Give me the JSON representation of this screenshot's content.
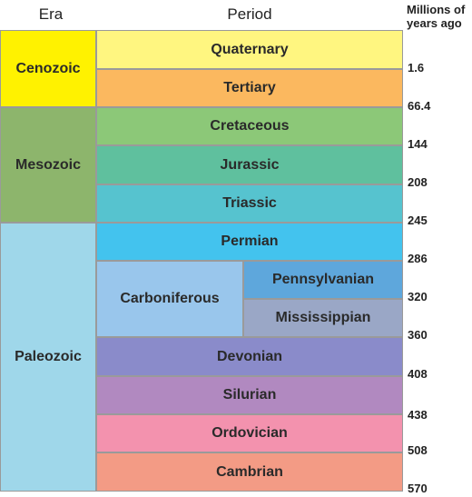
{
  "headers": {
    "era": "Era",
    "period": "Period",
    "units_line1": "Millions of",
    "units_line2": "years ago"
  },
  "eras": [
    {
      "name": "Cenozoic",
      "color": "#fff200"
    },
    {
      "name": "Mesozoic",
      "color": "#8db56c"
    },
    {
      "name": "Paleozoic",
      "color": "#9fd7ea"
    }
  ],
  "periods": [
    {
      "name": "Quaternary",
      "color": "#fff680"
    },
    {
      "name": "Tertiary",
      "color": "#fbb85f"
    },
    {
      "name": "Cretaceous",
      "color": "#8cc878"
    },
    {
      "name": "Jurassic",
      "color": "#5fc09e"
    },
    {
      "name": "Triassic",
      "color": "#56c3cf"
    },
    {
      "name": "Permian",
      "color": "#43c3ee"
    },
    {
      "name": "Carboniferous",
      "color": "#99c6ec"
    },
    {
      "name": "Pennsylvanian",
      "color": "#5ea7dc"
    },
    {
      "name": "Mississippian",
      "color": "#9aa7c6"
    },
    {
      "name": "Devonian",
      "color": "#8a8bca"
    },
    {
      "name": "Silurian",
      "color": "#b189c0"
    },
    {
      "name": "Ordovician",
      "color": "#f392ae"
    },
    {
      "name": "Cambrian",
      "color": "#f39b85"
    }
  ],
  "ticks": [
    "1.6",
    "66.4",
    "144",
    "208",
    "245",
    "286",
    "320",
    "360",
    "408",
    "438",
    "508",
    "570"
  ]
}
